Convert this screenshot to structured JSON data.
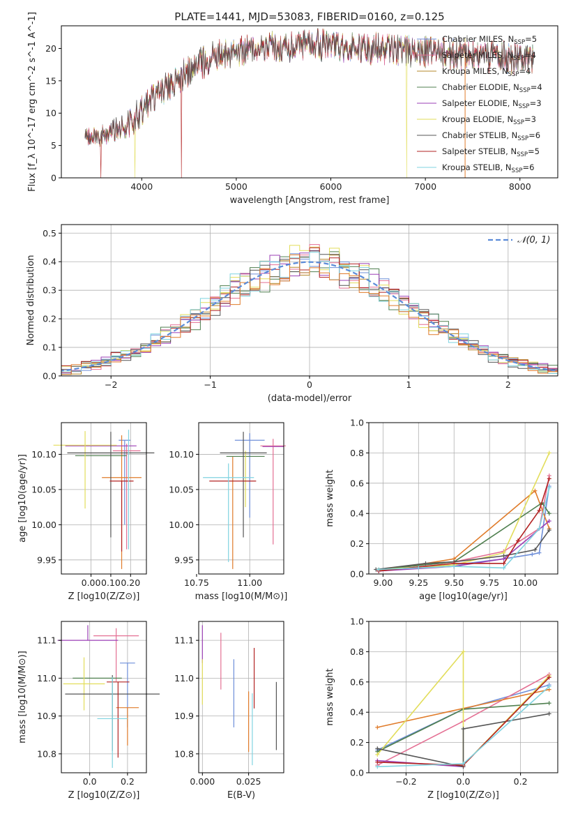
{
  "figure": {
    "title": "PLATE=1441, MJD=53083, FIBERID=0160, z=0.125",
    "colors": {
      "Chabrier MILES": "#6f8fd9",
      "Salpeter MILES": "#e46f93",
      "Kroupa MILES": "#b5872a",
      "Chabrier ELODIE": "#4f7f4f",
      "Salpeter ELODIE": "#9b3fb5",
      "Kroupa ELODIE": "#e2dd5a",
      "Chabrier STELIB": "#555555",
      "Salpeter STELIB": "#b22222",
      "Kroupa STELIB": "#7fd3e0",
      "orange": "#e07b2a"
    }
  },
  "chart_data": [
    {
      "id": "spectrum",
      "type": "line",
      "title": "PLATE=1441, MJD=53083, FIBERID=0160, z=0.125",
      "xlabel": "wavelength [Angstrom, rest frame]",
      "ylabel": "Flux [f_λ 10^-17 erg cm^-2 s^-1 A^-1]",
      "xlim": [
        3150,
        8400
      ],
      "ylim": [
        0,
        23.5
      ],
      "xticks": [
        4000,
        5000,
        6000,
        7000,
        8000
      ],
      "yticks": [
        0,
        5,
        10,
        15,
        20
      ],
      "grid": false,
      "legend_position": "upper right",
      "series": [
        {
          "name": "Chabrier MILES, N_SSP=5",
          "color": "#6f8fd9"
        },
        {
          "name": "Salpeter MILES, N_SSP=4",
          "color": "#e46f93"
        },
        {
          "name": "Kroupa MILES, N_SSP=4",
          "color": "#b5872a"
        },
        {
          "name": "Chabrier ELODIE, N_SSP=4",
          "color": "#4f7f4f"
        },
        {
          "name": "Salpeter ELODIE, N_SSP=3",
          "color": "#9b3fb5"
        },
        {
          "name": "Kroupa ELODIE, N_SSP=3",
          "color": "#e2dd5a"
        },
        {
          "name": "Chabrier STELIB, N_SSP=6",
          "color": "#555555"
        },
        {
          "name": "Salpeter STELIB, N_SSP=5",
          "color": "#b22222"
        },
        {
          "name": "Kroupa STELIB, N_SSP=6",
          "color": "#7fd3e0"
        }
      ],
      "continuum": {
        "x": [
          3400,
          3500,
          3600,
          3700,
          3800,
          3900,
          4000,
          4100,
          4200,
          4300,
          4400,
          4500,
          4600,
          4700,
          4800,
          4900,
          5000,
          5200,
          5400,
          5600,
          5800,
          6000,
          6200,
          6400,
          6600,
          6800,
          7000,
          7200,
          7400,
          7600,
          7800,
          8000,
          8150
        ],
        "y": [
          6.5,
          6.3,
          6.6,
          7.2,
          7.8,
          9.0,
          10.5,
          12.0,
          13.5,
          14.5,
          15.5,
          16.5,
          17.5,
          18.2,
          18.8,
          19.3,
          19.6,
          20.0,
          20.2,
          20.3,
          20.5,
          20.6,
          20.3,
          20.0,
          19.9,
          19.6,
          19.5,
          19.2,
          19.0,
          18.8,
          18.6,
          18.3,
          18.2
        ]
      },
      "dropouts": [
        {
          "x": 3570,
          "series": "Salpeter STELIB"
        },
        {
          "x": 3930,
          "series": "Kroupa ELODIE"
        },
        {
          "x": 4420,
          "series": "Salpeter STELIB"
        },
        {
          "x": 6800,
          "series": "Kroupa ELODIE"
        },
        {
          "x": 7420,
          "series": "orange"
        }
      ]
    },
    {
      "id": "residuals",
      "type": "histogram",
      "xlabel": "(data-model)/error",
      "ylabel": "Normed distribution",
      "xlim": [
        -2.5,
        2.5
      ],
      "ylim": [
        0,
        0.53
      ],
      "xticks": [
        -2,
        -1,
        0,
        1,
        2
      ],
      "yticks": [
        0,
        0.1,
        0.2,
        0.3,
        0.4,
        0.5
      ],
      "grid": true,
      "legend_position": "upper right",
      "reference": {
        "name": "N(0,1)",
        "color": "#5b8bd8",
        "style": "dashed"
      },
      "bin_width": 0.1,
      "series_colors": [
        "#6f8fd9",
        "#e46f93",
        "#b5872a",
        "#4f7f4f",
        "#9b3fb5",
        "#e2dd5a",
        "#555555",
        "#b22222",
        "#7fd3e0",
        "#e07b2a"
      ]
    },
    {
      "id": "age-vs-Z",
      "type": "scatter",
      "xlabel": "Z [log10(Z/Z⊙)]",
      "ylabel": "age [log10(age/yr)]",
      "xlim": [
        -0.15,
        0.28
      ],
      "ylim": [
        9.93,
        10.145
      ],
      "xticks": [
        0.0,
        0.1,
        0.2
      ],
      "xticklabels": [
        "0.00",
        "0.10",
        "0.20"
      ],
      "yticks": [
        9.95,
        10.0,
        10.05,
        10.1
      ],
      "grid": true,
      "errorbars": [
        {
          "x": 0.17,
          "y": 10.12,
          "xerr": 0.03,
          "yerr": [
            0.12,
            0.0
          ],
          "color": "#6f8fd9"
        },
        {
          "x": 0.18,
          "y": 10.105,
          "xerr": 0.07,
          "yerr": [
            0.14,
            0.01
          ],
          "color": "#e46f93"
        },
        {
          "x": 0.155,
          "y": 10.067,
          "xerr": 0.1,
          "yerr": [
            0.13,
            0.06
          ],
          "color": "#e07b2a"
        },
        {
          "x": 0.05,
          "y": 10.098,
          "xerr": 0.13,
          "yerr": [
            0.0,
            0.0
          ],
          "color": "#4f7f4f"
        },
        {
          "x": 0.05,
          "y": 10.112,
          "xerr": 0.18,
          "yerr": [
            0.0,
            0.0
          ],
          "color": "#9b3fb5"
        },
        {
          "x": -0.03,
          "y": 10.113,
          "xerr": 0.16,
          "yerr": [
            0.09,
            0.02
          ],
          "color": "#e2dd5a"
        },
        {
          "x": 0.1,
          "y": 10.102,
          "xerr": 0.22,
          "yerr": [
            0.12,
            0.03
          ],
          "color": "#555555"
        },
        {
          "x": 0.155,
          "y": 10.062,
          "xerr": 0.06,
          "yerr": [
            0.1,
            0.0
          ],
          "color": "#b22222"
        },
        {
          "x": 0.19,
          "y": 10.105,
          "xerr": 0.0,
          "yerr": [
            0.14,
            0.03
          ],
          "color": "#7fd3e0"
        }
      ]
    },
    {
      "id": "age-vs-mass",
      "type": "scatter",
      "xlabel": "mass [log10(M/M⊙)]",
      "ylabel": "",
      "xlim": [
        10.76,
        11.16
      ],
      "ylim": [
        9.93,
        10.145
      ],
      "xticks": [
        10.75,
        11.0
      ],
      "xticklabels": [
        "10.75",
        "11.00"
      ],
      "yticks": [
        9.95,
        10.0,
        10.05,
        10.1
      ],
      "grid": true,
      "errorbars": [
        {
          "x": 11.0,
          "y": 10.12,
          "xerr": 0.07,
          "yerr": [
            0.11,
            0.01
          ],
          "color": "#6f8fd9"
        },
        {
          "x": 11.11,
          "y": 10.112,
          "xerr": 0.06,
          "yerr": [
            0.14,
            0.01
          ],
          "color": "#e46f93"
        },
        {
          "x": 10.92,
          "y": 10.067,
          "xerr": 0.0,
          "yerr": [
            0.13,
            0.03
          ],
          "color": "#e07b2a"
        },
        {
          "x": 10.98,
          "y": 10.097,
          "xerr": 0.09,
          "yerr": [
            0.0,
            0.0
          ],
          "color": "#4f7f4f"
        },
        {
          "x": 11.11,
          "y": 10.111,
          "xerr": 0.05,
          "yerr": [
            0.0,
            0.0
          ],
          "color": "#9b3fb5"
        },
        {
          "x": 10.98,
          "y": 10.105,
          "xerr": 0.0,
          "yerr": [
            0.08,
            0.0
          ],
          "color": "#e2dd5a"
        },
        {
          "x": 10.97,
          "y": 10.102,
          "xerr": 0.11,
          "yerr": [
            0.12,
            0.03
          ],
          "color": "#555555"
        },
        {
          "x": 10.92,
          "y": 10.062,
          "xerr": 0.11,
          "yerr": [
            0.0,
            0.0
          ],
          "color": "#b22222"
        },
        {
          "x": 10.9,
          "y": 10.067,
          "xerr": 0.12,
          "yerr": [
            0.12,
            0.02
          ],
          "color": "#7fd3e0"
        }
      ]
    },
    {
      "id": "weight-vs-age",
      "type": "line",
      "xlabel": "age [log10(age/yr)]",
      "ylabel": "mass weight",
      "xlim": [
        8.9,
        10.23
      ],
      "ylim": [
        0,
        1.0
      ],
      "xticks": [
        9.0,
        9.25,
        9.5,
        9.75,
        10.0
      ],
      "xticklabels": [
        "9.00",
        "9.25",
        "9.50",
        "9.75",
        "10.00"
      ],
      "yticks": [
        0,
        0.2,
        0.4,
        0.6,
        0.8,
        1.0
      ],
      "grid": true,
      "series": [
        {
          "color": "#6f8fd9",
          "x": [
            8.97,
            9.5,
            9.85,
            10.05,
            10.1,
            10.17
          ],
          "y": [
            0.02,
            0.06,
            0.1,
            0.13,
            0.14,
            0.58
          ]
        },
        {
          "color": "#e46f93",
          "x": [
            8.97,
            9.5,
            9.85,
            10.1,
            10.17
          ],
          "y": [
            0.03,
            0.08,
            0.15,
            0.3,
            0.65
          ]
        },
        {
          "color": "#e07b2a",
          "x": [
            8.97,
            9.5,
            10.07,
            10.17
          ],
          "y": [
            0.02,
            0.1,
            0.55,
            0.3
          ]
        },
        {
          "color": "#4f7f4f",
          "x": [
            8.97,
            9.5,
            10.12,
            10.17
          ],
          "y": [
            0.03,
            0.08,
            0.47,
            0.4
          ]
        },
        {
          "color": "#9b3fb5",
          "x": [
            8.97,
            9.5,
            9.85,
            10.17
          ],
          "y": [
            0.02,
            0.05,
            0.1,
            0.35
          ]
        },
        {
          "color": "#e2dd5a",
          "x": [
            8.97,
            9.5,
            9.85,
            10.17
          ],
          "y": [
            0.03,
            0.06,
            0.14,
            0.8
          ]
        },
        {
          "color": "#555555",
          "x": [
            8.95,
            9.3,
            9.5,
            9.85,
            10.07,
            10.17
          ],
          "y": [
            0.03,
            0.07,
            0.08,
            0.12,
            0.16,
            0.29
          ]
        },
        {
          "color": "#b22222",
          "x": [
            8.97,
            9.5,
            9.85,
            9.95,
            10.1,
            10.17
          ],
          "y": [
            0.02,
            0.07,
            0.07,
            0.22,
            0.42,
            0.63
          ]
        },
        {
          "color": "#7fd3e0",
          "x": [
            8.97,
            9.25,
            9.5,
            9.85,
            10.1,
            10.17
          ],
          "y": [
            0.03,
            0.04,
            0.05,
            0.04,
            0.3,
            0.57
          ]
        }
      ]
    },
    {
      "id": "mass-vs-Z",
      "type": "scatter",
      "xlabel": "Z [log10(Z/Z⊙)]",
      "ylabel": "mass [log10(M/M⊙)]",
      "xlim": [
        -0.15,
        0.3
      ],
      "ylim": [
        10.75,
        11.15
      ],
      "xticks": [
        0.0,
        0.2
      ],
      "xticklabels": [
        "0.0",
        "0.2"
      ],
      "yticks": [
        10.8,
        10.9,
        11.0,
        11.1
      ],
      "grid": true,
      "errorbars": [
        {
          "x": 0.2,
          "y": 11.04,
          "xerr": 0.04,
          "yerr": [
            0.17,
            0.0
          ],
          "color": "#6f8fd9"
        },
        {
          "x": 0.14,
          "y": 11.112,
          "xerr": 0.12,
          "yerr": [
            0.12,
            0.02
          ],
          "color": "#e46f93"
        },
        {
          "x": 0.2,
          "y": 10.922,
          "xerr": 0.06,
          "yerr": [
            0.1,
            0.0
          ],
          "color": "#e07b2a"
        },
        {
          "x": 0.04,
          "y": 11.0,
          "xerr": 0.13,
          "yerr": [
            0.0,
            0.0
          ],
          "color": "#4f7f4f"
        },
        {
          "x": -0.01,
          "y": 11.1,
          "xerr": 0.16,
          "yerr": [
            0.0,
            0.04
          ],
          "color": "#9b3fb5"
        },
        {
          "x": -0.03,
          "y": 10.985,
          "xerr": 0.11,
          "yerr": [
            0.07,
            0.07
          ],
          "color": "#e2dd5a"
        },
        {
          "x": 0.12,
          "y": 10.958,
          "xerr": 0.25,
          "yerr": [
            0.15,
            0.05
          ],
          "color": "#555555"
        },
        {
          "x": 0.15,
          "y": 10.99,
          "xerr": 0.06,
          "yerr": [
            0.2,
            0.0
          ],
          "color": "#b22222"
        },
        {
          "x": 0.12,
          "y": 10.893,
          "xerr": 0.08,
          "yerr": [
            0.13,
            0.11
          ],
          "color": "#7fd3e0"
        }
      ]
    },
    {
      "id": "mass-vs-EBV",
      "type": "scatter",
      "xlabel": "E(B-V)",
      "ylabel": "",
      "xlim": [
        -0.002,
        0.044
      ],
      "ylim": [
        10.75,
        11.15
      ],
      "xticks": [
        0.0,
        0.025
      ],
      "xticklabels": [
        "0.000",
        "0.025"
      ],
      "yticks": [
        10.8,
        10.9,
        11.0,
        11.1
      ],
      "grid": true,
      "errorbars": [
        {
          "x": 0.017,
          "y": 10.96,
          "xerr": 0.0,
          "yerr": [
            0.09,
            0.09
          ],
          "color": "#6f8fd9"
        },
        {
          "x": 0.01,
          "y": 11.05,
          "xerr": 0.0,
          "yerr": [
            0.08,
            0.07
          ],
          "color": "#e46f93"
        },
        {
          "x": 0.025,
          "y": 10.885,
          "xerr": 0.0,
          "yerr": [
            0.08,
            0.08
          ],
          "color": "#e07b2a"
        },
        {
          "x": 0.0,
          "y": 11.09,
          "xerr": 0.0,
          "yerr": [
            0.05,
            0.05
          ],
          "color": "#9b3fb5"
        },
        {
          "x": 0.0,
          "y": 10.99,
          "xerr": 0.0,
          "yerr": [
            0.06,
            0.06
          ],
          "color": "#e2dd5a"
        },
        {
          "x": 0.04,
          "y": 10.9,
          "xerr": 0.0,
          "yerr": [
            0.09,
            0.09
          ],
          "color": "#555555"
        },
        {
          "x": 0.028,
          "y": 11.0,
          "xerr": 0.0,
          "yerr": [
            0.08,
            0.08
          ],
          "color": "#b22222"
        },
        {
          "x": 0.027,
          "y": 10.87,
          "xerr": 0.0,
          "yerr": [
            0.1,
            0.09
          ],
          "color": "#7fd3e0"
        }
      ]
    },
    {
      "id": "weight-vs-Z",
      "type": "line",
      "xlabel": "Z [log10(Z/Z⊙)]",
      "ylabel": "mass weight",
      "xlim": [
        -0.33,
        0.33
      ],
      "ylim": [
        0,
        1.0
      ],
      "xticks": [
        -0.2,
        0.0,
        0.2
      ],
      "xticklabels": [
        "−0.2",
        "0.0",
        "0.2"
      ],
      "yticks": [
        0,
        0.2,
        0.4,
        0.6,
        0.8,
        1.0
      ],
      "grid": true,
      "series": [
        {
          "color": "#6f8fd9",
          "x": [
            -0.3,
            0.0,
            0.3
          ],
          "y": [
            0.15,
            0.42,
            0.58
          ]
        },
        {
          "color": "#e46f93",
          "x": [
            -0.3,
            0.0,
            0.3
          ],
          "y": [
            0.05,
            0.34,
            0.65
          ]
        },
        {
          "color": "#e07b2a",
          "x": [
            -0.3,
            0.3
          ],
          "y": [
            0.3,
            0.55
          ]
        },
        {
          "color": "#4f7f4f",
          "x": [
            -0.3,
            0.0,
            0.3
          ],
          "y": [
            0.14,
            0.42,
            0.46
          ]
        },
        {
          "color": "#9b3fb5",
          "x": [
            -0.3,
            0.0
          ],
          "y": [
            0.08,
            0.04
          ]
        },
        {
          "color": "#e2dd5a",
          "x": [
            -0.3,
            0.0,
            0.0,
            0.3
          ],
          "y": [
            0.12,
            0.8,
            0.05,
            0.64
          ]
        },
        {
          "color": "#555555",
          "x": [
            -0.3,
            0.0,
            0.0,
            0.3
          ],
          "y": [
            0.16,
            0.04,
            0.29,
            0.39
          ]
        },
        {
          "color": "#b22222",
          "x": [
            -0.3,
            0.0,
            0.3
          ],
          "y": [
            0.07,
            0.05,
            0.63
          ]
        },
        {
          "color": "#7fd3e0",
          "x": [
            -0.3,
            0.0,
            0.3
          ],
          "y": [
            0.04,
            0.06,
            0.57
          ]
        }
      ]
    }
  ]
}
